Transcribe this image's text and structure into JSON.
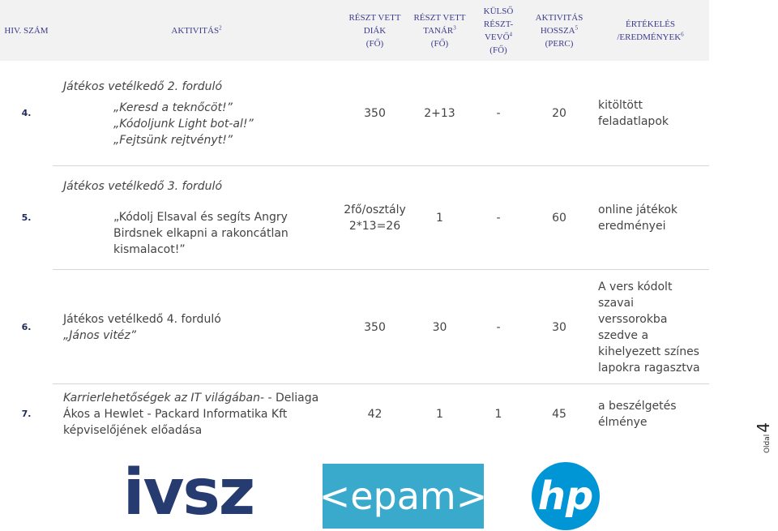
{
  "header": [
    {
      "text": "HIV. SZÁM"
    },
    {
      "text": "AKTIVITÁS",
      "sup": "2"
    },
    {
      "text": "RÉSZT VETT DIÁK",
      "unit": "(FŐ)"
    },
    {
      "text": "RÉSZT VETT TANÁR",
      "sup": "3",
      "unit": "(FŐ)"
    },
    {
      "text": "KÜLSŐ RÉSZT-VEVŐ",
      "sup": "4",
      "unit": "(FŐ)"
    },
    {
      "text": "AKTIVITÁS HOSSZA",
      "sup": "5",
      "unit": "(PERC)"
    },
    {
      "text": "ÉRTÉKELÉS /EREDMÉNYEK",
      "sup": "6"
    }
  ],
  "rows": [
    {
      "num": "4.",
      "activity": [
        "Játékos vetélkedő 2. forduló",
        "„Keresd a teknőcöt!”",
        "„Kódoljunk Light bot-al!”",
        "„Fejtsünk rejtvényt!”"
      ],
      "diak": [
        "350"
      ],
      "tanar": "2+13",
      "kulso": "-",
      "hossz": "20",
      "eval": "kitöltött feladatlapok"
    },
    {
      "num": "5.",
      "activity": [
        "Játékos vetélkedő 3. forduló",
        "„Kódolj Elsaval és segíts Angry Birdsnek elkapni a rakoncátlan kismalacot!”"
      ],
      "diak": [
        "2fő/osztály",
        "2*13=26"
      ],
      "tanar": "1",
      "kulso": "-",
      "hossz": "60",
      "eval": "online játékok eredményei"
    },
    {
      "num": "6.",
      "activity": [
        "Játékos vetélkedő 4. forduló",
        "„János vitéz”"
      ],
      "diak": [
        "350"
      ],
      "tanar": "30",
      "kulso": "-",
      "hossz": "30",
      "eval": "A vers kódolt szavai verssorokba szedve a kihelyezett színes lapokra ragasztva"
    },
    {
      "num": "7.",
      "activity": [
        "Karrierlehetőségek az IT világában",
        "- - Deliaga Ákos a Hewlet - Packard Informatika Kft képviselőjének előadása"
      ],
      "diak": [
        "42"
      ],
      "tanar": "1",
      "kulso": "1",
      "hossz": "45",
      "eval": "a beszélgetés élménye"
    }
  ],
  "footer": {
    "page_label": "Oldal",
    "page_number": "4"
  },
  "logos": [
    "ivsz",
    "<epam>",
    "hp"
  ]
}
